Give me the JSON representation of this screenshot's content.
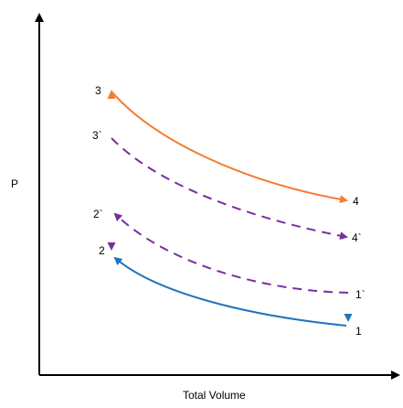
{
  "diagram": {
    "y_axis_label": "P",
    "x_axis_label": "Total Volume",
    "points": {
      "p1": "1",
      "p1p": "1`",
      "p2": "2",
      "p2p": "2`",
      "p3": "3",
      "p3p": "3`",
      "p4": "4",
      "p4p": "4`"
    },
    "colors": {
      "axis": "#000000",
      "expansion": "#f47c30",
      "compression": "#1f74bd",
      "alt_cycle": "#7a2e9e",
      "heat_add_top": "#f47c30",
      "heat_add_bottom": "#7a2e9e",
      "heat_reject_top": "#f47c30",
      "heat_reject_bottom": "#1f74bd"
    }
  }
}
